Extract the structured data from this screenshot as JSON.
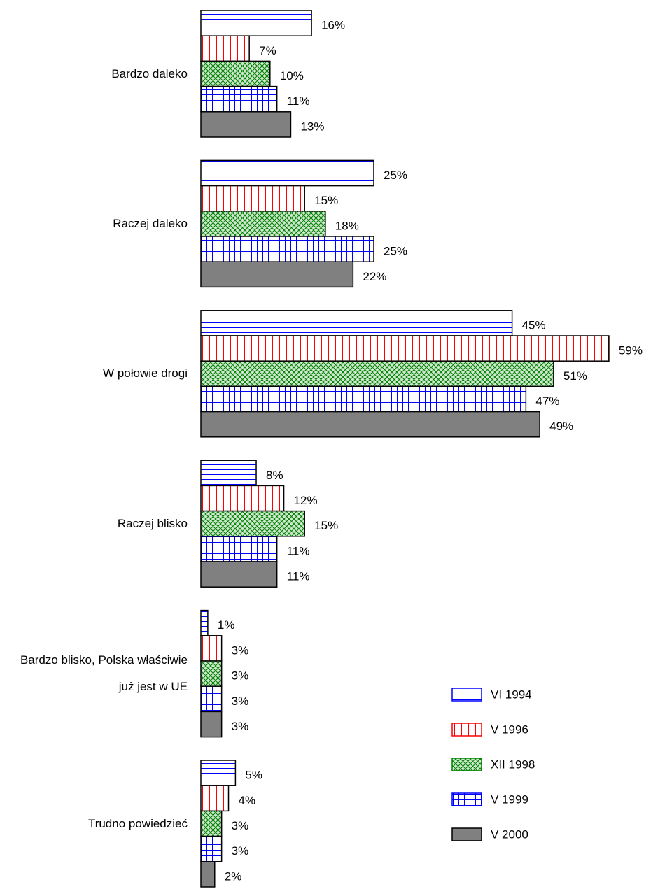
{
  "chart_data": {
    "type": "bar",
    "orientation": "horizontal",
    "categories": [
      "Bardzo daleko",
      "Raczej daleko",
      "W połowie drogi",
      "Raczej blisko",
      "Bardzo blisko, Polska właściwie już jest w UE",
      "Trudno powiedzieć"
    ],
    "series": [
      {
        "name": "VI 1994",
        "color": "#0000ff",
        "pattern": "horizontal",
        "values": [
          16,
          25,
          45,
          8,
          1,
          5
        ],
        "value_labels": [
          "16%",
          "25%",
          "45%",
          "8%",
          "1%",
          "5%"
        ]
      },
      {
        "name": "V 1996",
        "color": "#ff0000",
        "pattern": "vertical",
        "values": [
          7,
          15,
          59,
          12,
          3,
          4
        ],
        "value_labels": [
          "7%",
          "15%",
          "59%",
          "12%",
          "3%",
          "4%"
        ]
      },
      {
        "name": "XII 1998",
        "color": "#008000",
        "pattern": "crosshatch",
        "values": [
          10,
          18,
          51,
          15,
          3,
          3
        ],
        "value_labels": [
          "10%",
          "18%",
          "51%",
          "15%",
          "3%",
          "3%"
        ]
      },
      {
        "name": "V 1999",
        "color": "#0000ff",
        "pattern": "grid",
        "values": [
          11,
          25,
          47,
          11,
          3,
          3
        ],
        "value_labels": [
          "11%",
          "25%",
          "47%",
          "11%",
          "3%",
          "3%"
        ]
      },
      {
        "name": "V 2000",
        "color": "#808080",
        "pattern": "solid",
        "values": [
          13,
          22,
          49,
          11,
          3,
          2
        ],
        "value_labels": [
          "13%",
          "22%",
          "49%",
          "11%",
          "3%",
          "2%"
        ]
      }
    ],
    "legend": "lower-right"
  }
}
